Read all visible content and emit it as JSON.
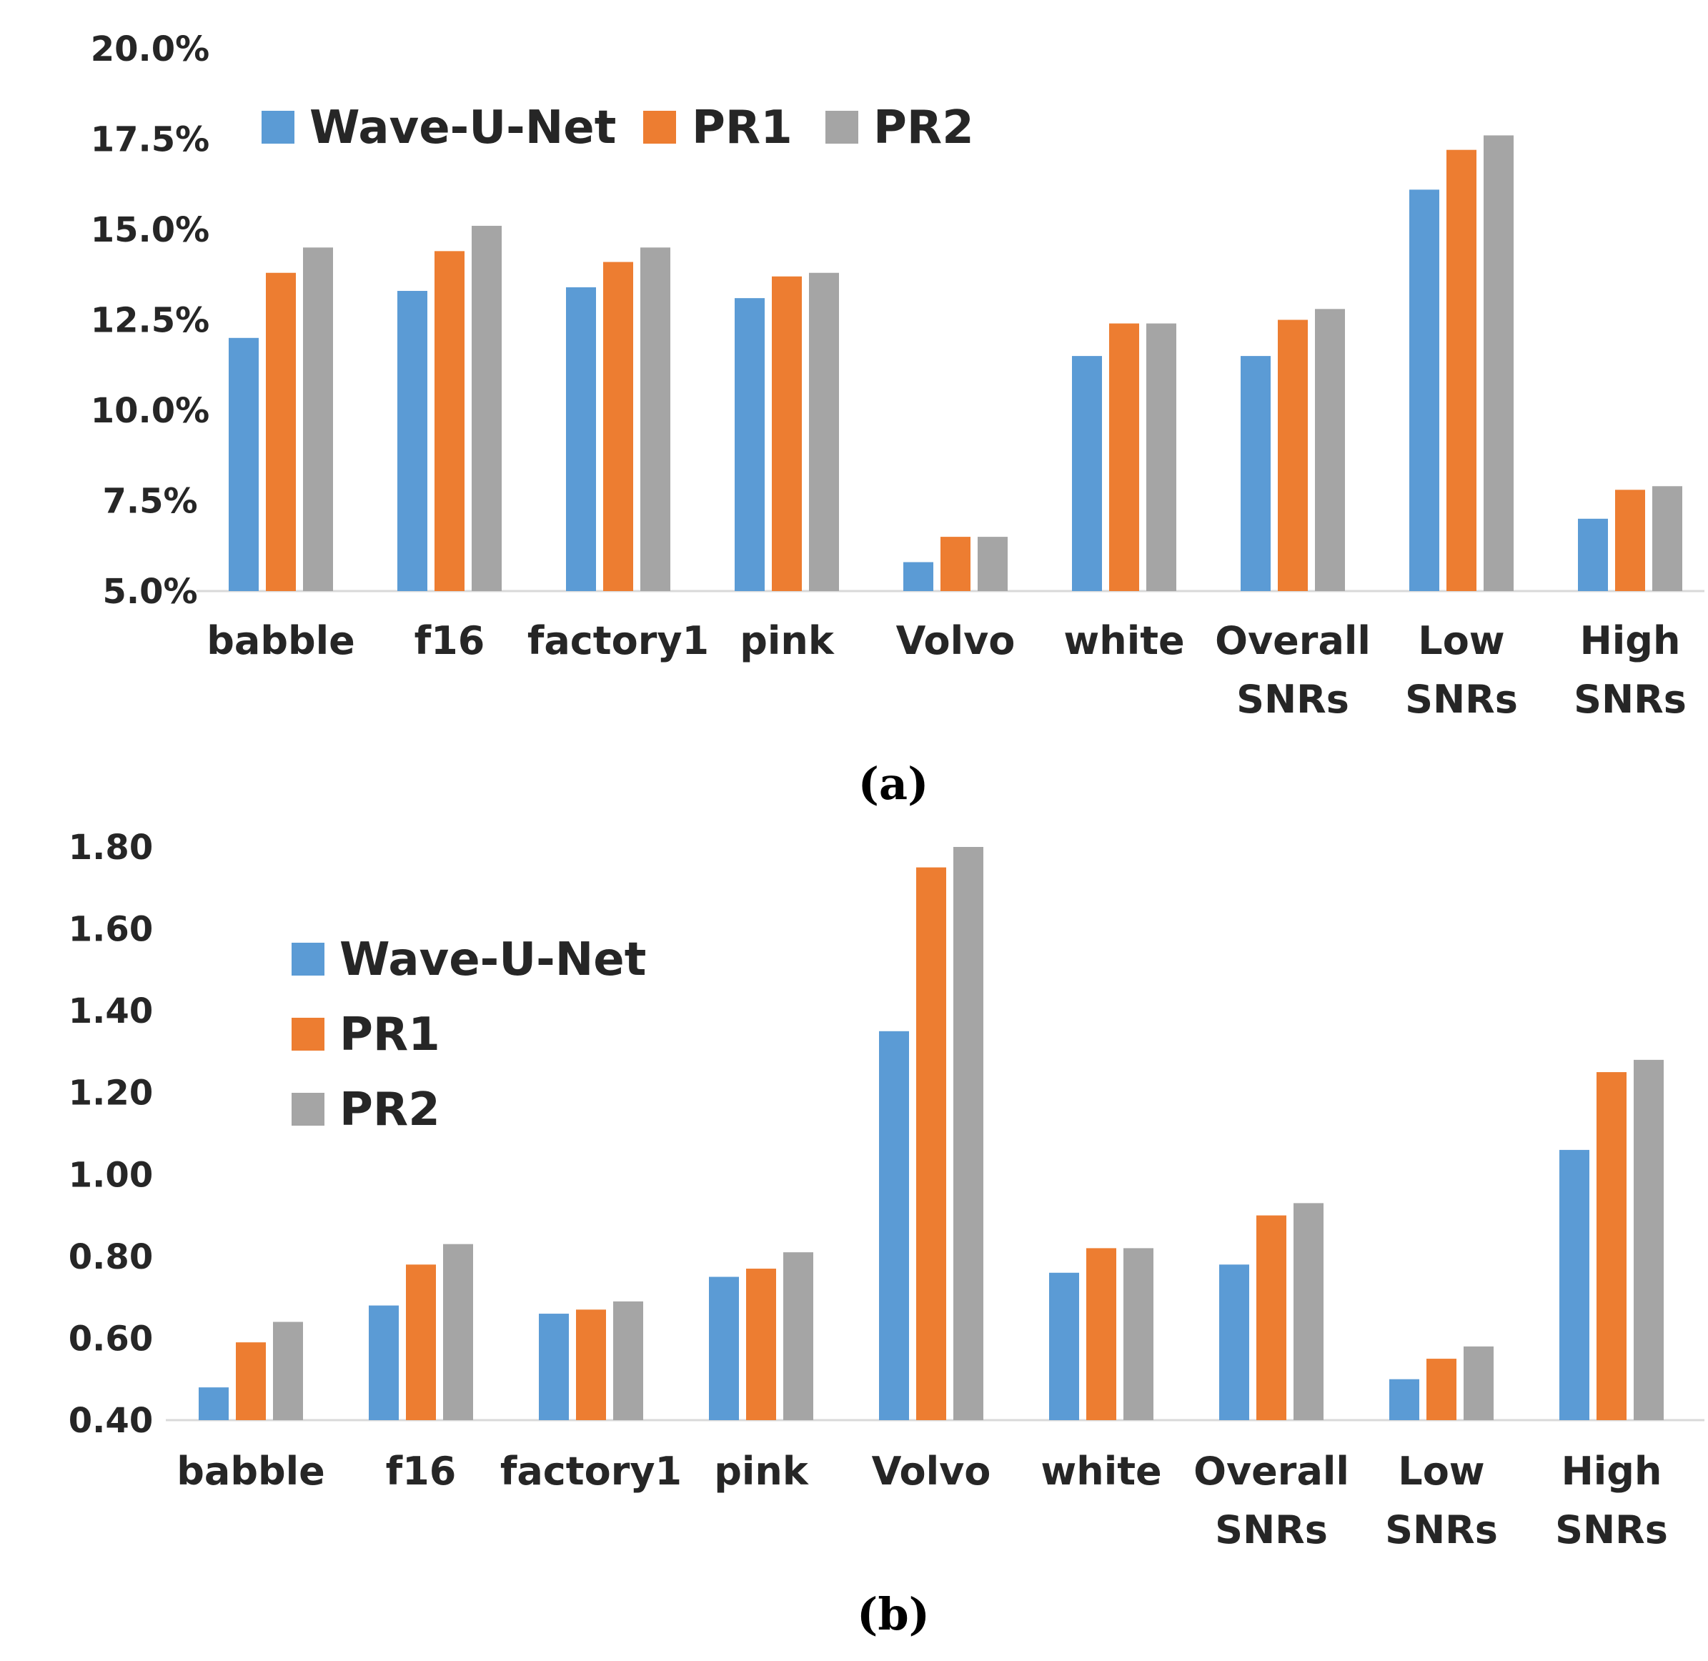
{
  "colors": {
    "Wave-U-Net": "#5b9bd5",
    "PR1": "#ed7d31",
    "PR2": "#a5a5a5"
  },
  "chart_data": [
    {
      "type": "bar",
      "panel_label": "(a)",
      "categories": [
        [
          "babble"
        ],
        [
          "f16"
        ],
        [
          "factory1"
        ],
        [
          "pink"
        ],
        [
          "Volvo"
        ],
        [
          "white"
        ],
        [
          "Overall",
          "SNRs"
        ],
        [
          "Low",
          "SNRs"
        ],
        [
          "High",
          "SNRs"
        ]
      ],
      "series": [
        {
          "name": "Wave-U-Net",
          "values": [
            12.0,
            13.3,
            13.4,
            13.1,
            5.8,
            11.5,
            11.5,
            16.1,
            7.0
          ]
        },
        {
          "name": "PR1",
          "values": [
            13.8,
            14.4,
            14.1,
            13.7,
            6.5,
            12.4,
            12.5,
            17.2,
            7.8
          ]
        },
        {
          "name": "PR2",
          "values": [
            14.5,
            15.1,
            14.5,
            13.8,
            6.5,
            12.4,
            12.8,
            17.6,
            7.9
          ]
        }
      ],
      "yticks": [
        "5.0%",
        "7.5%",
        "10.0%",
        "12.5%",
        "15.0%",
        "17.5%",
        "20.0%"
      ],
      "ylim": [
        5,
        20
      ],
      "legend": "top-left, horizontal",
      "grid": false
    },
    {
      "type": "bar",
      "panel_label": "(b)",
      "categories": [
        [
          "babble"
        ],
        [
          "f16"
        ],
        [
          "factory1"
        ],
        [
          "pink"
        ],
        [
          "Volvo"
        ],
        [
          "white"
        ],
        [
          "Overall",
          "SNRs"
        ],
        [
          "Low",
          "SNRs"
        ],
        [
          "High",
          "SNRs"
        ]
      ],
      "series": [
        {
          "name": "Wave-U-Net",
          "values": [
            0.48,
            0.68,
            0.66,
            0.75,
            1.35,
            0.76,
            0.78,
            0.5,
            1.06
          ]
        },
        {
          "name": "PR1",
          "values": [
            0.59,
            0.78,
            0.67,
            0.77,
            1.75,
            0.82,
            0.9,
            0.55,
            1.25
          ]
        },
        {
          "name": "PR2",
          "values": [
            0.64,
            0.83,
            0.69,
            0.81,
            1.8,
            0.82,
            0.93,
            0.58,
            1.28
          ]
        }
      ],
      "yticks": [
        "0.40",
        "0.60",
        "0.80",
        "1.00",
        "1.20",
        "1.40",
        "1.60",
        "1.80"
      ],
      "ylim": [
        0.4,
        1.8
      ],
      "legend": "top-left, vertical",
      "grid": false
    }
  ]
}
